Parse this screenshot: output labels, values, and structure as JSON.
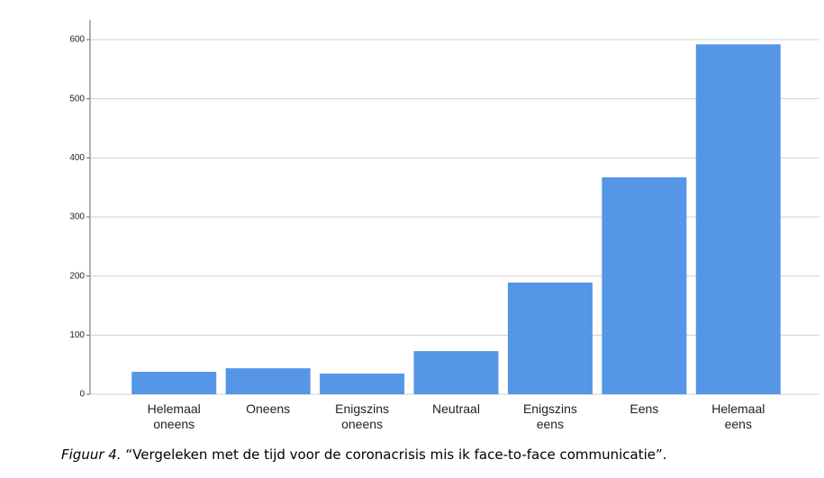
{
  "chart_data": {
    "type": "bar",
    "categories": [
      [
        "Helemaal",
        "oneens"
      ],
      [
        "Oneens"
      ],
      [
        "Enigszins",
        "oneens"
      ],
      [
        "Neutraal"
      ],
      [
        "Enigszins",
        "eens"
      ],
      [
        "Eens"
      ],
      [
        "Helemaal",
        "eens"
      ]
    ],
    "values": [
      38,
      44,
      35,
      73,
      189,
      367,
      592
    ],
    "color": "#5596e6",
    "ylim": [
      0,
      600
    ],
    "yticks": [
      0,
      100,
      200,
      300,
      400,
      500,
      600
    ],
    "grid": true
  },
  "caption": {
    "label": "Figuur 4.",
    "text": "“Vergeleken met de tijd voor de coronacrisis mis ik face-to-face communicatie”."
  }
}
